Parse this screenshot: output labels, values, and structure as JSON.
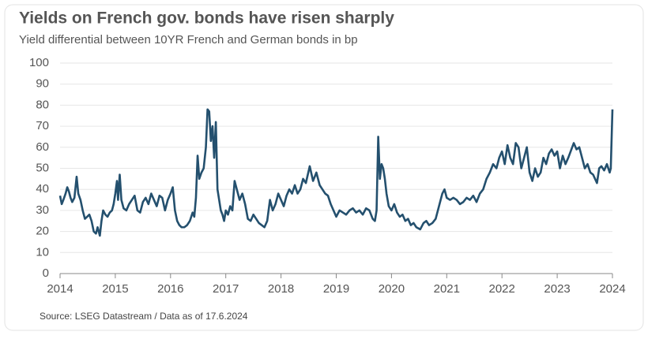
{
  "chart_data": {
    "type": "line",
    "title": "Yields on French gov. bonds have risen sharply",
    "subtitle": "Yield differential between 10YR French and German bonds in bp",
    "source": "Source: LSEG Datastream / Data as of 17.6.2024",
    "x": [
      2014,
      2014.03,
      2014.06,
      2014.1,
      2014.13,
      2014.16,
      2014.19,
      2014.22,
      2014.26,
      2014.3,
      2014.33,
      2014.37,
      2014.41,
      2014.45,
      2014.49,
      2014.53,
      2014.57,
      2014.61,
      2014.65,
      2014.68,
      2014.72,
      2014.75,
      2014.78,
      2014.82,
      2014.86,
      2014.9,
      2014.94,
      2014.97,
      2015,
      2015.03,
      2015.05,
      2015.08,
      2015.11,
      2015.15,
      2015.2,
      2015.25,
      2015.3,
      2015.35,
      2015.4,
      2015.45,
      2015.5,
      2015.55,
      2015.6,
      2015.65,
      2015.7,
      2015.75,
      2015.8,
      2015.85,
      2015.9,
      2015.95,
      2016,
      2016.04,
      2016.08,
      2016.12,
      2016.16,
      2016.2,
      2016.25,
      2016.3,
      2016.35,
      2016.4,
      2016.43,
      2016.46,
      2016.49,
      2016.52,
      2016.56,
      2016.6,
      2016.64,
      2016.67,
      2016.7,
      2016.73,
      2016.76,
      2016.79,
      2016.82,
      2016.85,
      2016.88,
      2016.91,
      2016.94,
      2016.97,
      2017,
      2017.04,
      2017.08,
      2017.12,
      2017.16,
      2017.2,
      2017.25,
      2017.3,
      2017.35,
      2017.4,
      2017.45,
      2017.5,
      2017.55,
      2017.6,
      2017.65,
      2017.7,
      2017.75,
      2017.8,
      2017.85,
      2017.9,
      2017.95,
      2018,
      2018.05,
      2018.1,
      2018.15,
      2018.2,
      2018.25,
      2018.3,
      2018.35,
      2018.4,
      2018.45,
      2018.52,
      2018.58,
      2018.64,
      2018.7,
      2018.75,
      2018.8,
      2018.85,
      2018.9,
      2018.95,
      2019,
      2019.06,
      2019.12,
      2019.18,
      2019.24,
      2019.3,
      2019.36,
      2019.42,
      2019.48,
      2019.54,
      2019.6,
      2019.66,
      2019.7,
      2019.73,
      2019.76,
      2019.79,
      2019.82,
      2019.85,
      2019.88,
      2019.91,
      2019.95,
      2020,
      2020.05,
      2020.1,
      2020.15,
      2020.2,
      2020.25,
      2020.3,
      2020.35,
      2020.4,
      2020.45,
      2020.52,
      2020.58,
      2020.63,
      2020.68,
      2020.74,
      2020.8,
      2020.86,
      2020.92,
      2020.96,
      2021,
      2021.06,
      2021.12,
      2021.18,
      2021.24,
      2021.3,
      2021.36,
      2021.42,
      2021.48,
      2021.54,
      2021.6,
      2021.66,
      2021.72,
      2021.78,
      2021.84,
      2021.9,
      2021.95,
      2022,
      2022.05,
      2022.1,
      2022.15,
      2022.2,
      2022.25,
      2022.3,
      2022.35,
      2022.4,
      2022.45,
      2022.5,
      2022.55,
      2022.6,
      2022.65,
      2022.7,
      2022.75,
      2022.8,
      2022.85,
      2022.9,
      2022.95,
      2023,
      2023.05,
      2023.1,
      2023.15,
      2023.2,
      2023.3,
      2023.35,
      2023.4,
      2023.45,
      2023.5,
      2023.55,
      2023.6,
      2023.65,
      2023.72,
      2023.76,
      2023.8,
      2023.85,
      2023.9,
      2023.95,
      2023.97,
      2024
    ],
    "series": [
      {
        "color": "#24506e",
        "values": [
          37,
          33,
          35,
          38,
          41,
          39,
          36,
          34,
          36,
          46,
          38,
          35,
          30,
          26,
          27,
          28,
          25,
          20,
          19,
          22,
          18,
          25,
          30,
          28,
          27,
          29,
          30,
          33,
          38,
          44,
          35,
          47,
          35,
          31,
          30,
          33,
          35,
          37,
          30,
          29,
          34,
          36,
          33,
          38,
          35,
          32,
          37,
          36,
          30,
          35,
          38,
          41,
          30,
          25,
          23,
          22,
          22,
          23,
          25,
          29,
          27,
          36,
          56,
          45,
          48,
          50,
          60,
          78,
          77,
          63,
          70,
          55,
          72,
          40,
          35,
          30,
          28,
          25,
          30,
          28,
          32,
          30,
          44,
          40,
          35,
          38,
          33,
          26,
          25,
          28,
          26,
          24,
          23,
          22,
          25,
          35,
          30,
          33,
          38,
          35,
          32,
          37,
          40,
          38,
          42,
          38,
          40,
          45,
          43,
          51,
          44,
          48,
          42,
          40,
          38,
          37,
          33,
          30,
          27,
          30,
          29,
          28,
          30,
          31,
          29,
          30,
          28,
          31,
          30,
          26,
          25,
          30,
          65,
          45,
          52,
          50,
          45,
          38,
          32,
          30,
          33,
          29,
          27,
          28,
          25,
          26,
          23,
          24,
          22,
          21,
          24,
          25,
          23,
          24,
          26,
          32,
          38,
          40,
          36,
          35,
          36,
          35,
          33,
          34,
          36,
          35,
          37,
          34,
          38,
          40,
          45,
          48,
          52,
          50,
          55,
          58,
          52,
          61,
          55,
          52,
          62,
          60,
          50,
          55,
          60,
          48,
          44,
          50,
          46,
          48,
          55,
          52,
          57,
          59,
          56,
          58,
          50,
          56,
          52,
          55,
          62,
          59,
          60,
          55,
          50,
          52,
          48,
          47,
          43,
          50,
          51,
          49,
          52,
          48,
          50,
          78
        ]
      }
    ],
    "xlim": [
      2014,
      2024
    ],
    "xticks": [
      2014,
      2015,
      2016,
      2017,
      2018,
      2019,
      2020,
      2021,
      2022,
      2023,
      2024
    ],
    "ylim": [
      0,
      100
    ],
    "yticks": [
      0,
      10,
      20,
      30,
      40,
      50,
      60,
      70,
      80,
      90,
      100
    ],
    "grid": true
  }
}
